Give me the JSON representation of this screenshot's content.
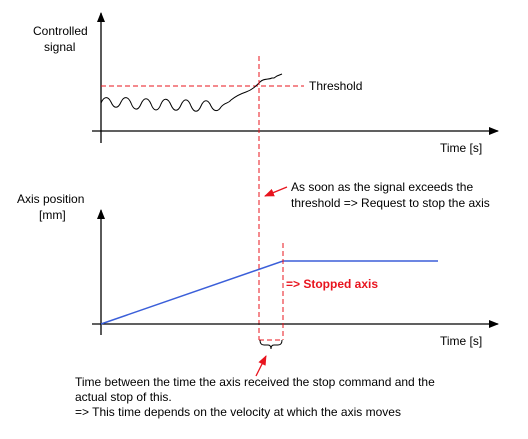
{
  "top_chart": {
    "ylabel_line1": "Controlled",
    "ylabel_line2": "signal",
    "threshold_label": "Threshold",
    "xlabel": "Time [s]"
  },
  "bottom_chart": {
    "ylabel_line1": "Axis position",
    "ylabel_line2": "[mm]",
    "stopped_label": "=> Stopped axis",
    "xlabel": "Time [s]"
  },
  "annotations": {
    "request_line1": "As soon as the signal exceeds the",
    "request_line2": "threshold => Request to stop the axis",
    "delay_line1": "Time between the time the axis received the stop command and the",
    "delay_line2": "actual stop of this.",
    "delay_line3": "=> This time depends on the velocity at which the axis moves"
  },
  "colors": {
    "axis": "#000000",
    "dashed": "#e8141e",
    "position_line": "#3b5fd9",
    "signal_line": "#000000"
  }
}
